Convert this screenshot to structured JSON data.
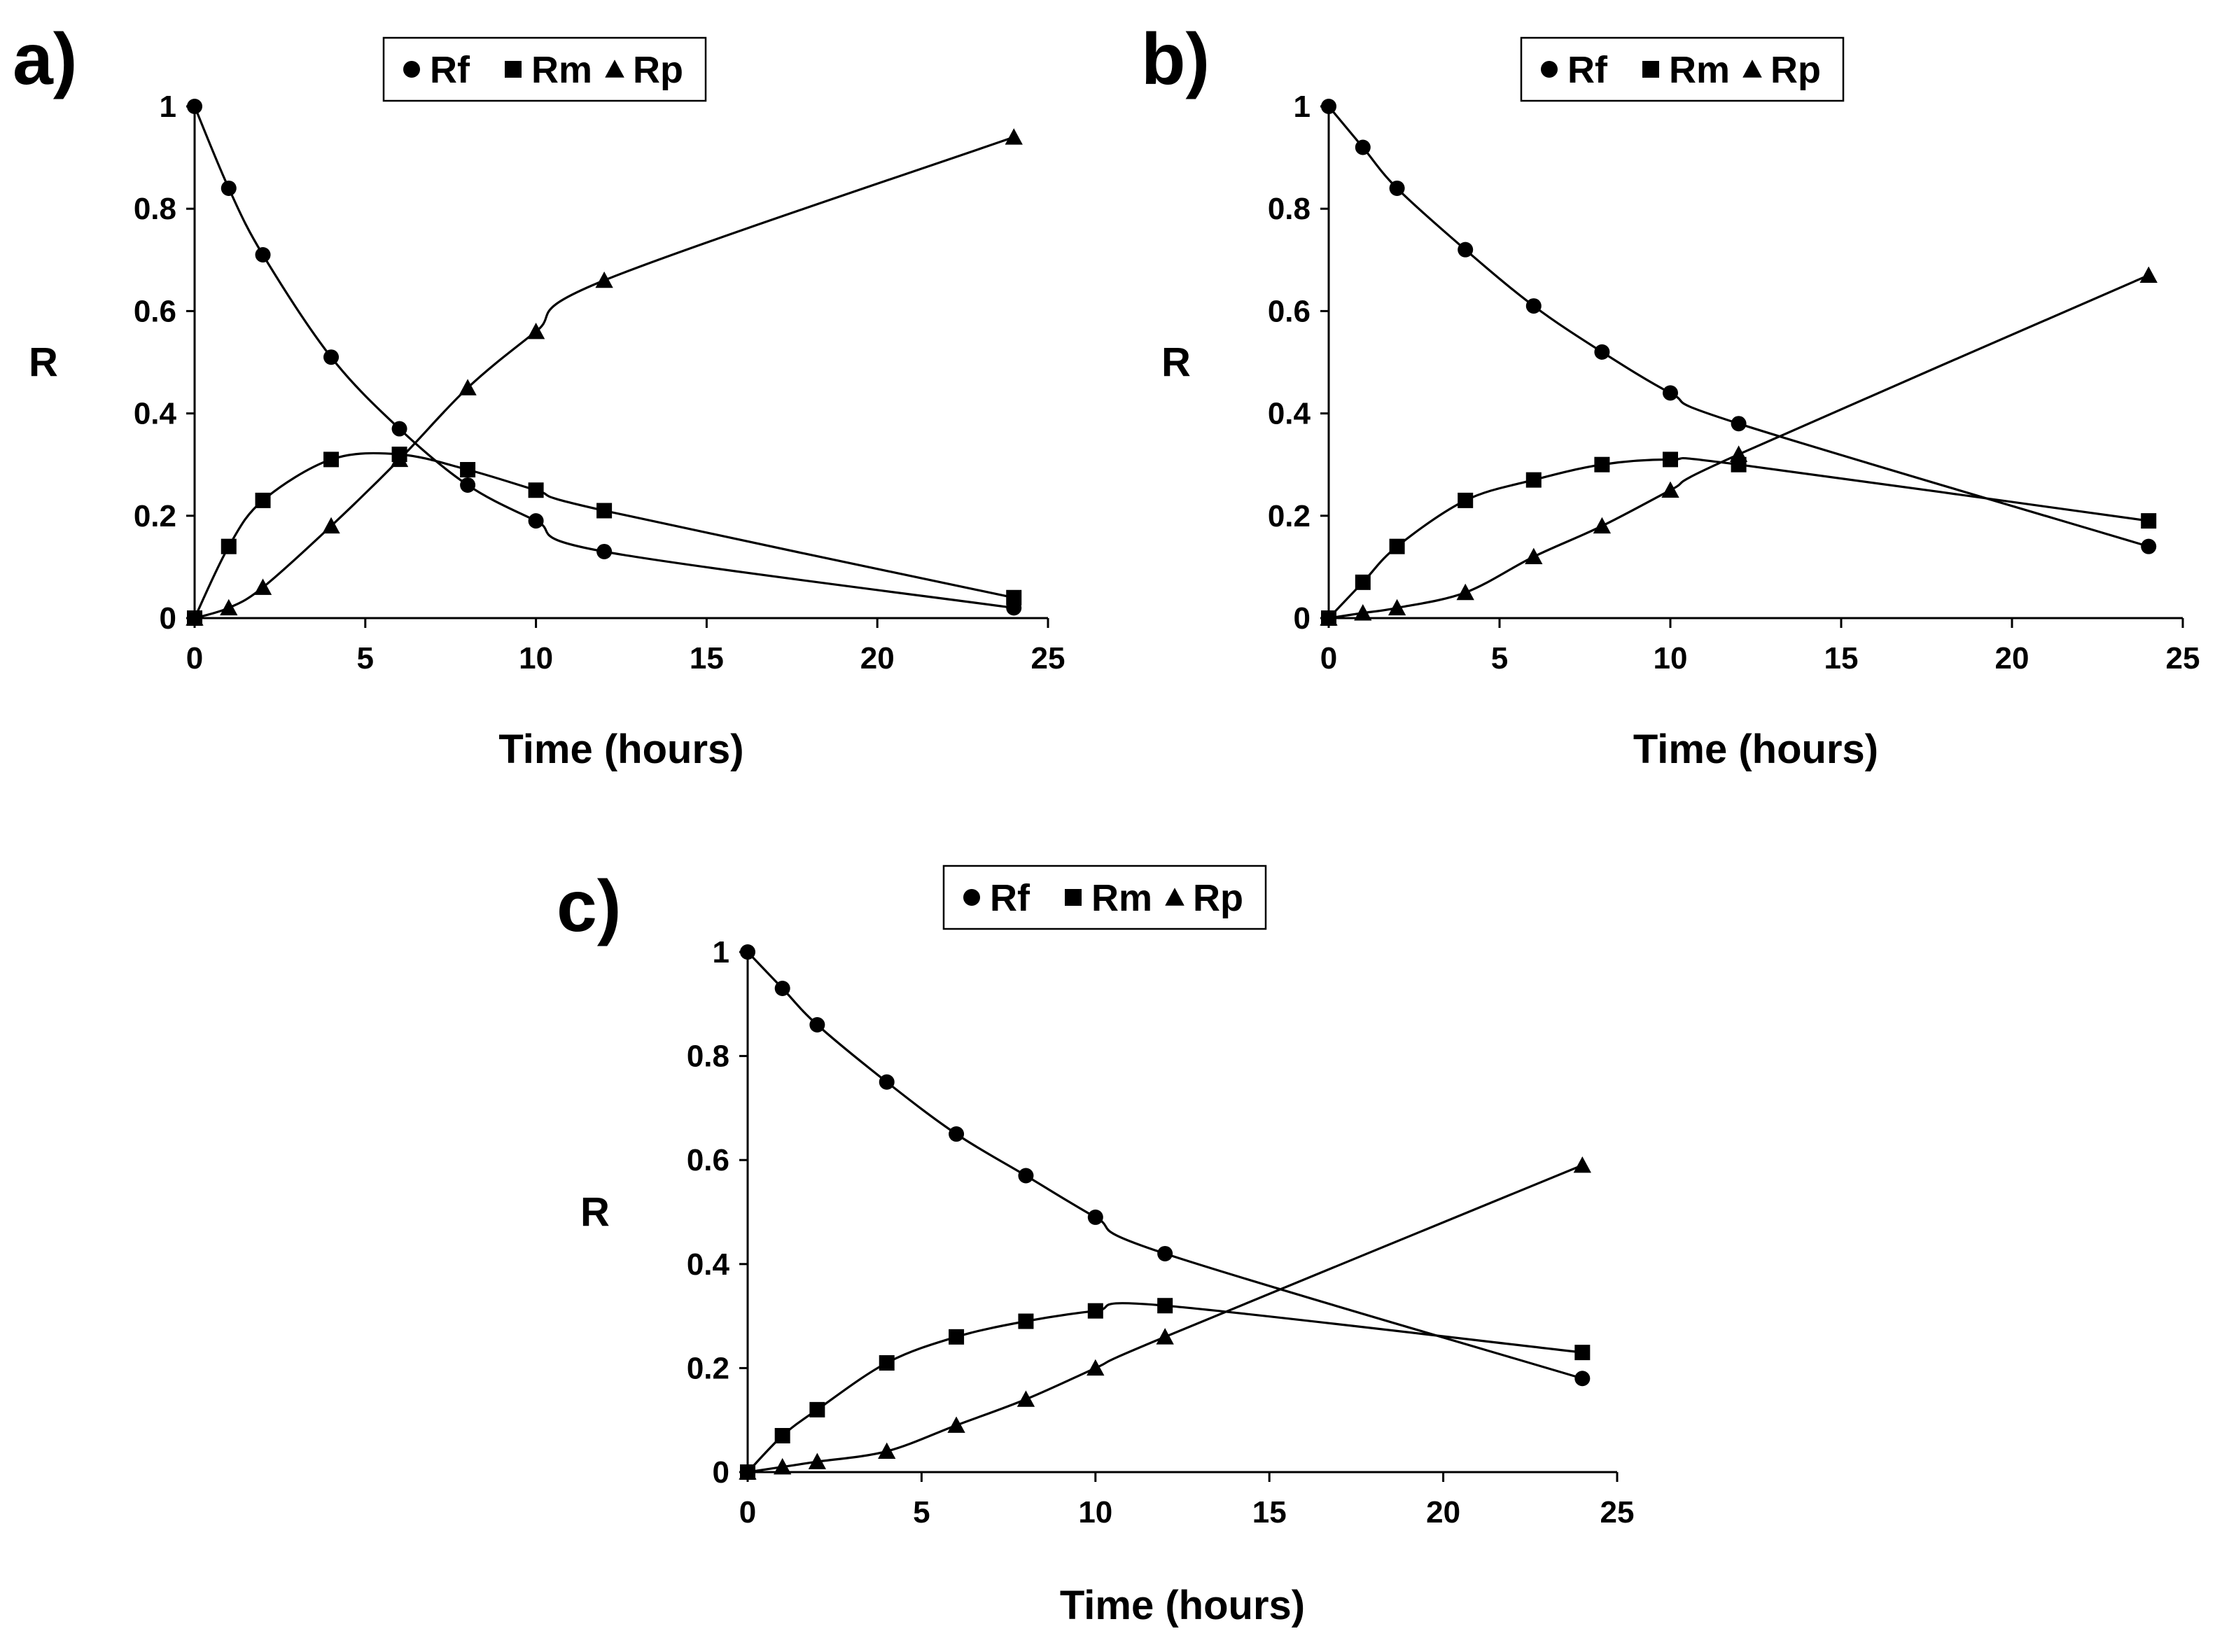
{
  "chart_data": [
    {
      "type": "line",
      "panel_label": "a)",
      "title": "",
      "xlabel": "Time (hours)",
      "ylabel": "R",
      "xlim": [
        0,
        25
      ],
      "ylim": [
        0,
        1
      ],
      "xticks": [
        "0",
        "5",
        "10",
        "15",
        "20",
        "25"
      ],
      "yticks": [
        "0",
        "0.2",
        "0.4",
        "0.6",
        "0.8",
        "1"
      ],
      "grid": false,
      "legend_position": "top-center",
      "x": [
        0,
        1,
        2,
        4,
        6,
        8,
        10,
        12,
        24
      ],
      "series": [
        {
          "name": "Rf",
          "marker": "circle",
          "values": [
            1.0,
            0.84,
            0.71,
            0.51,
            0.37,
            0.26,
            0.19,
            0.13,
            0.02
          ]
        },
        {
          "name": "Rm",
          "marker": "square",
          "values": [
            0.0,
            0.14,
            0.23,
            0.31,
            0.32,
            0.29,
            0.25,
            0.21,
            0.04
          ]
        },
        {
          "name": "Rp",
          "marker": "triangle",
          "values": [
            0.0,
            0.02,
            0.06,
            0.18,
            0.31,
            0.45,
            0.56,
            0.66,
            0.94
          ]
        }
      ]
    },
    {
      "type": "line",
      "panel_label": "b)",
      "title": "",
      "xlabel": "Time (hours)",
      "ylabel": "R",
      "xlim": [
        0,
        25
      ],
      "ylim": [
        0,
        1
      ],
      "xticks": [
        "0",
        "5",
        "10",
        "15",
        "20",
        "25"
      ],
      "yticks": [
        "0",
        "0.2",
        "0.4",
        "0.6",
        "0.8",
        "1"
      ],
      "grid": false,
      "legend_position": "top-center",
      "x": [
        0,
        1,
        2,
        4,
        6,
        8,
        10,
        12,
        24
      ],
      "series": [
        {
          "name": "Rf",
          "marker": "circle",
          "values": [
            1.0,
            0.92,
            0.84,
            0.72,
            0.61,
            0.52,
            0.44,
            0.38,
            0.14
          ]
        },
        {
          "name": "Rm",
          "marker": "square",
          "values": [
            0.0,
            0.07,
            0.14,
            0.23,
            0.27,
            0.3,
            0.31,
            0.3,
            0.19
          ]
        },
        {
          "name": "Rp",
          "marker": "triangle",
          "values": [
            0.0,
            0.01,
            0.02,
            0.05,
            0.12,
            0.18,
            0.25,
            0.32,
            0.67
          ]
        }
      ]
    },
    {
      "type": "line",
      "panel_label": "c)",
      "title": "",
      "xlabel": "Time (hours)",
      "ylabel": "R",
      "xlim": [
        0,
        25
      ],
      "ylim": [
        0,
        1
      ],
      "xticks": [
        "0",
        "5",
        "10",
        "15",
        "20",
        "25"
      ],
      "yticks": [
        "0",
        "0.2",
        "0.4",
        "0.6",
        "0.8",
        "1"
      ],
      "grid": false,
      "legend_position": "top-center",
      "x": [
        0,
        1,
        2,
        4,
        6,
        8,
        10,
        12,
        24
      ],
      "series": [
        {
          "name": "Rf",
          "marker": "circle",
          "values": [
            1.0,
            0.93,
            0.86,
            0.75,
            0.65,
            0.57,
            0.49,
            0.42,
            0.18
          ]
        },
        {
          "name": "Rm",
          "marker": "square",
          "values": [
            0.0,
            0.07,
            0.12,
            0.21,
            0.26,
            0.29,
            0.31,
            0.32,
            0.23
          ]
        },
        {
          "name": "Rp",
          "marker": "triangle",
          "values": [
            0.0,
            0.01,
            0.02,
            0.04,
            0.09,
            0.14,
            0.2,
            0.26,
            0.59
          ]
        }
      ]
    }
  ]
}
